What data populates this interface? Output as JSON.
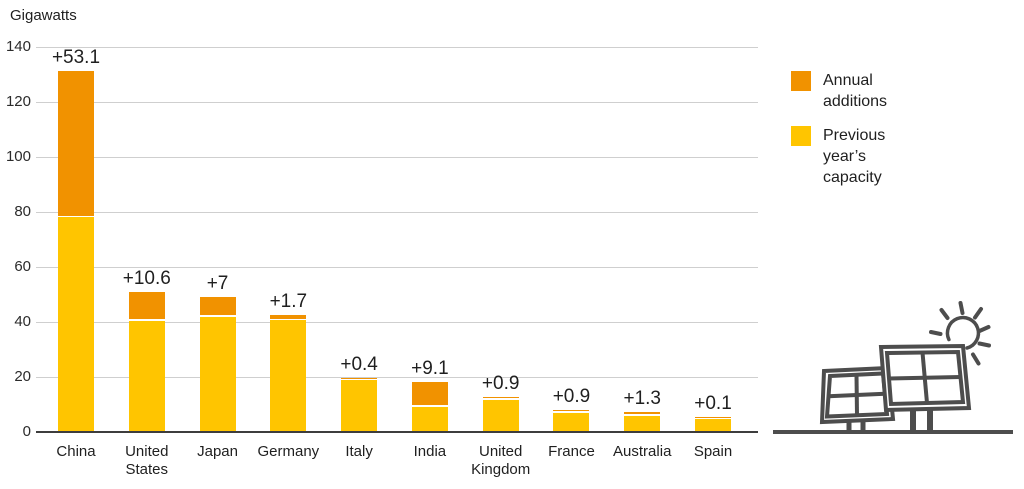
{
  "chart_data": {
    "type": "bar",
    "stacked": true,
    "title": "",
    "ylabel": "Gigawatts",
    "xlabel": "",
    "ylim": [
      0,
      140
    ],
    "yticks": [
      0,
      20,
      40,
      60,
      80,
      100,
      120,
      140
    ],
    "grid": true,
    "legend_position": "right",
    "categories": [
      "China",
      "United States",
      "Japan",
      "Germany",
      "Italy",
      "India",
      "United Kingdom",
      "France",
      "Australia",
      "Spain"
    ],
    "series": [
      {
        "name": "Annual additions",
        "color": "#F19200",
        "position": "top",
        "values": [
          53.1,
          10.6,
          7,
          1.7,
          0.4,
          9.1,
          0.9,
          0.9,
          1.3,
          0.1
        ]
      },
      {
        "name": "Previous year’s capacity",
        "color": "#FFC500",
        "position": "bottom",
        "values": [
          78.0,
          40.4,
          42.0,
          40.7,
          19.3,
          9.2,
          11.8,
          7.1,
          5.9,
          5.5
        ]
      }
    ],
    "totals": [
      131.1,
      51.0,
      49.0,
      42.4,
      19.7,
      18.3,
      12.7,
      8.0,
      7.2,
      5.6
    ],
    "bar_labels": [
      "+53.1",
      "+10.6",
      "+7",
      "+1.7",
      "+0.4",
      "+9.1",
      "+0.9",
      "+0.9",
      "+1.3",
      "+0.1"
    ]
  },
  "legend": {
    "items": [
      {
        "label": "Annual additions",
        "color": "#F19200"
      },
      {
        "label": "Previous year’s capacity",
        "color": "#FFC500"
      }
    ]
  },
  "illustration": {
    "name": "solar-panels-and-sun",
    "stroke_color": "#4D4D4D"
  },
  "colors": {
    "grid": "#CFCFCF",
    "axis": "#3D3D3D",
    "text": "#1F1F1F",
    "background": "#FFFFFF"
  }
}
